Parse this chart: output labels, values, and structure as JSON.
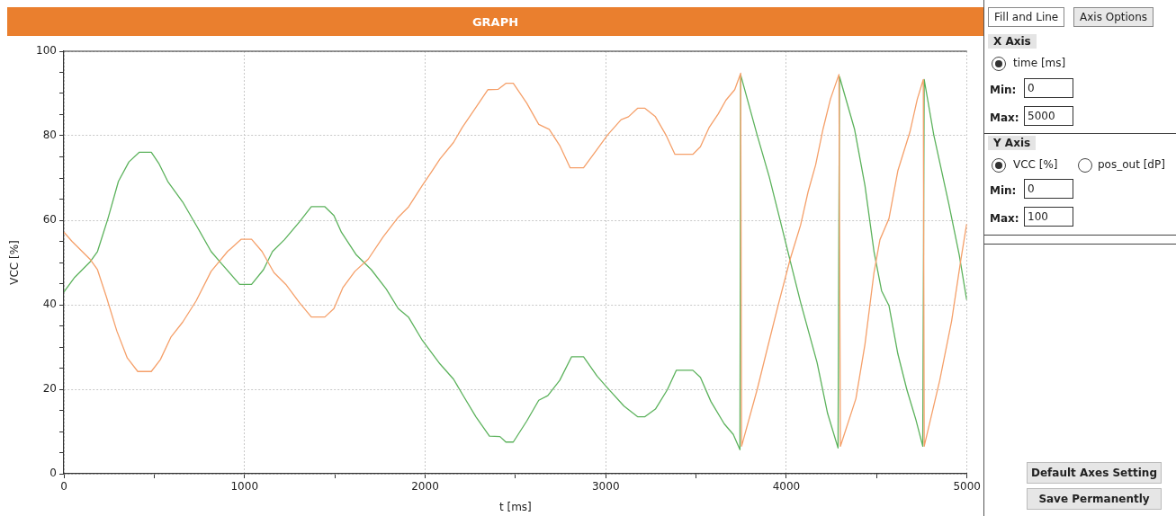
{
  "chart_data": {
    "type": "line",
    "title": "GRAPH",
    "xlabel": "t [ms]",
    "ylabel": "VCC [%]",
    "xlim": [
      0,
      5000
    ],
    "xticks": [
      0,
      {
        "value": 500,
        "label": null
      },
      1000,
      {
        "value": 1500,
        "label": null
      },
      2000,
      {
        "value": 2500,
        "label": null
      },
      3000,
      {
        "value": 3500,
        "label": null
      },
      4000,
      {
        "value": 4500,
        "label": null
      },
      5000
    ],
    "ylim": [
      0,
      100
    ],
    "yticks": [
      0,
      {
        "value": 5,
        "label": null
      },
      {
        "value": 10,
        "label": null
      },
      {
        "value": 15,
        "label": null
      },
      20,
      {
        "value": 25,
        "label": null
      },
      {
        "value": 30,
        "label": null
      },
      {
        "value": 35,
        "label": null
      },
      40,
      {
        "value": 45,
        "label": null
      },
      {
        "value": 50,
        "label": null
      },
      {
        "value": 55,
        "label": null
      },
      60,
      {
        "value": 65,
        "label": null
      },
      {
        "value": 70,
        "label": null
      },
      {
        "value": 75,
        "label": null
      },
      80,
      {
        "value": 85,
        "label": null
      },
      {
        "value": 90,
        "label": null
      },
      {
        "value": 95,
        "label": null
      },
      100
    ],
    "grid": true,
    "legend": false,
    "marker": "none",
    "line_style": "solid",
    "series": [
      {
        "color": "#f5a06a",
        "x": [
          0,
          45,
          144,
          186,
          235,
          293,
          351,
          409,
          484,
          534,
          592,
          658,
          732,
          815,
          906,
          981,
          1039,
          1097,
          1163,
          1229,
          1304,
          1370,
          1445,
          1495,
          1544,
          1611,
          1685,
          1768,
          1851,
          1909,
          1984,
          2033,
          2082,
          2157,
          2206,
          2273,
          2347,
          2405,
          2447,
          2488,
          2563,
          2629,
          2687,
          2745,
          2803,
          2877,
          2944,
          3010,
          3085,
          3126,
          3176,
          3217,
          3275,
          3333,
          3383,
          3482,
          3524,
          3573,
          3623,
          3665,
          3714,
          3747,
          3752,
          3838,
          3896,
          3954,
          4021,
          4079,
          4120,
          4162,
          4203,
          4244,
          4291,
          4299,
          4385,
          4435,
          4485,
          4518,
          4568,
          4617,
          4684,
          4725,
          4758,
          4763,
          4849,
          4915,
          4965,
          4998
        ],
        "values": [
          57.2,
          55.0,
          50.8,
          48.3,
          41.9,
          33.8,
          27.4,
          24.2,
          24.2,
          27.0,
          32.3,
          35.9,
          40.9,
          47.9,
          52.6,
          55.5,
          55.5,
          52.6,
          47.6,
          44.8,
          40.5,
          37.1,
          37.1,
          39.1,
          44.0,
          47.9,
          50.8,
          56.1,
          60.7,
          63.2,
          68.2,
          71.3,
          74.5,
          78.4,
          82.0,
          86.2,
          90.9,
          91.0,
          92.4,
          92.4,
          87.7,
          82.7,
          81.5,
          77.7,
          72.4,
          72.4,
          76.3,
          80.2,
          83.8,
          84.5,
          86.5,
          86.5,
          84.5,
          80.2,
          75.6,
          75.6,
          77.4,
          82.0,
          85.2,
          88.4,
          90.9,
          94.8,
          6.5,
          19.9,
          29.9,
          39.8,
          50.8,
          58.9,
          66.7,
          73.1,
          81.6,
          88.7,
          94.5,
          6.5,
          17.8,
          30.6,
          47.6,
          55.4,
          60.4,
          71.7,
          80.9,
          88.7,
          93.3,
          6.5,
          22.1,
          36.2,
          50.4,
          59.1
        ]
      },
      {
        "color": "#5cb25c",
        "x": [
          0,
          60,
          144,
          186,
          244,
          302,
          360,
          418,
          484,
          525,
          575,
          658,
          741,
          815,
          873,
          973,
          1039,
          1105,
          1155,
          1221,
          1304,
          1370,
          1445,
          1495,
          1536,
          1619,
          1702,
          1785,
          1851,
          1909,
          1984,
          2033,
          2082,
          2157,
          2215,
          2281,
          2356,
          2414,
          2447,
          2488,
          2563,
          2629,
          2679,
          2745,
          2811,
          2877,
          2952,
          3010,
          3101,
          3176,
          3217,
          3275,
          3341,
          3391,
          3482,
          3524,
          3582,
          3656,
          3706,
          3743,
          3747,
          3838,
          3905,
          3963,
          4021,
          4079,
          4170,
          4228,
          4286,
          4294,
          4377,
          4435,
          4485,
          4527,
          4568,
          4617,
          4667,
          4717,
          4755,
          4763,
          4816,
          4899,
          4957,
          4998
        ],
        "values": [
          43.0,
          46.5,
          50.1,
          52.6,
          60.4,
          69.2,
          73.8,
          76.1,
          76.1,
          73.5,
          69.2,
          64.3,
          58.2,
          52.6,
          49.7,
          44.8,
          44.8,
          48.3,
          52.6,
          55.4,
          59.6,
          63.2,
          63.2,
          61.1,
          57.2,
          51.8,
          48.3,
          43.7,
          39.1,
          37.0,
          31.6,
          28.8,
          26.0,
          22.4,
          18.2,
          13.5,
          8.9,
          8.8,
          7.5,
          7.5,
          12.5,
          17.4,
          18.5,
          22.1,
          27.7,
          27.7,
          23.1,
          20.3,
          16.0,
          13.5,
          13.5,
          15.3,
          19.9,
          24.5,
          24.5,
          22.8,
          17.1,
          11.8,
          9.3,
          5.7,
          94.4,
          80.2,
          70.3,
          60.4,
          50.4,
          40.5,
          26.3,
          14.3,
          6.1,
          94.0,
          81.6,
          68.2,
          52.6,
          43.3,
          39.8,
          28.4,
          19.9,
          12.8,
          6.5,
          93.3,
          80.2,
          63.9,
          51.8,
          41.2
        ]
      }
    ],
    "annotations": [
      "Fill and Line",
      "Axis Options",
      "X Axis",
      "time [ms]",
      "Min:",
      "0",
      "Max:",
      "5000",
      "Y Axis",
      "VCC [%]",
      "pos_out [dP]",
      "Min:",
      "0",
      "Max:",
      "100",
      "Default Axes Setting",
      "Save Permanently"
    ]
  }
}
